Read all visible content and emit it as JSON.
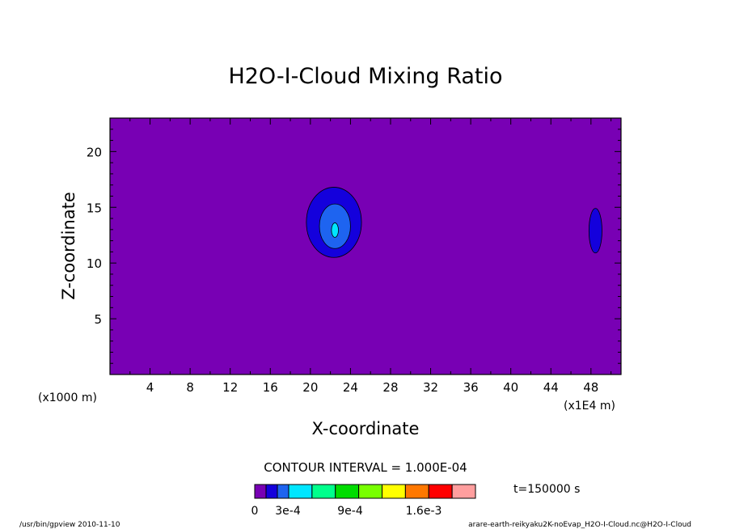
{
  "chart_data": {
    "type": "heatmap",
    "title": "H2O-I-Cloud Mixing Ratio",
    "xlabel": "X-coordinate",
    "ylabel": "Z-coordinate",
    "x_unit_left": "(x1000 m)",
    "x_unit_right": "(x1E4 m)",
    "xlim": [
      0,
      51
    ],
    "ylim": [
      0,
      23
    ],
    "x_ticks": [
      4,
      8,
      12,
      16,
      20,
      24,
      28,
      32,
      36,
      40,
      44,
      48
    ],
    "y_ticks": [
      5,
      10,
      15,
      20
    ],
    "contour_interval_label": "CONTOUR INTERVAL = 1.000E-04",
    "time_label": "t=150000 s",
    "background_level_color": "#7800b4",
    "color_levels": [
      "#7800b4",
      "#1400dc",
      "#1e64f0",
      "#00e6ff",
      "#00ff8c",
      "#00dc00",
      "#78ff00",
      "#ffff00",
      "#ff7800",
      "#ff0000",
      "#ff9e9e"
    ],
    "colorbar_labels": [
      "0",
      "3e-4",
      "9e-4",
      "1.6e-3"
    ],
    "features": [
      {
        "name": "main-cloud",
        "levels": [
          {
            "level": 1,
            "color": "#1400dc",
            "x_range": [
              19.6,
              25.1
            ],
            "z_range": [
              10.5,
              16.8
            ]
          },
          {
            "level": 2,
            "color": "#1e64f0",
            "x_range": [
              20.9,
              24.0
            ],
            "z_range": [
              11.3,
              15.3
            ]
          },
          {
            "level": 3,
            "color": "#00e6ff",
            "x_range": [
              22.1,
              22.8
            ],
            "z_range": [
              12.3,
              13.6
            ]
          }
        ]
      },
      {
        "name": "side-cloud",
        "levels": [
          {
            "level": 1,
            "color": "#1400dc",
            "x_range": [
              47.8,
              49.1
            ],
            "z_range": [
              10.9,
              14.9
            ]
          }
        ]
      }
    ]
  },
  "footer": {
    "left": "/usr/bin/gpview   2010-11-10",
    "right": "arare-earth-reikyaku2K-noEvap_H2O-I-Cloud.nc@H2O-I-Cloud"
  }
}
